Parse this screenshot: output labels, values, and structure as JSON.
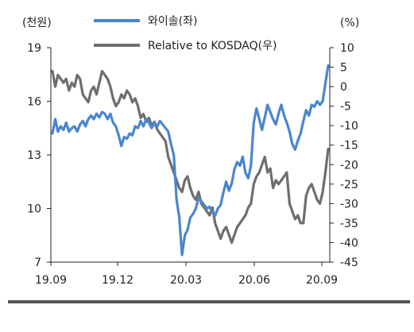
{
  "chart_data": {
    "type": "line",
    "y_left_unit": "(천원)",
    "y_right_unit": "(%)",
    "left_axis": {
      "min": 7,
      "max": 19,
      "ticks": [
        19,
        16,
        13,
        10,
        7
      ]
    },
    "right_axis": {
      "min": -45,
      "max": 10,
      "ticks": [
        10,
        5,
        0,
        -5,
        -10,
        -15,
        -20,
        -25,
        -30,
        -35,
        -40,
        -45
      ]
    },
    "x_ticks": [
      "19.09",
      "19.12",
      "20.03",
      "20.06",
      "20.09"
    ],
    "legend_position": "top",
    "grid": false,
    "colors": {
      "series1": "#4a86cf",
      "series2": "#6e6e6e",
      "axis": "#222222",
      "footer": "#555555"
    },
    "series": [
      {
        "name": "와이솔(좌)",
        "axis": "left",
        "x": [
          0,
          0.01,
          0.02,
          0.03,
          0.04,
          0.05,
          0.06,
          0.07,
          0.08,
          0.09,
          0.1,
          0.11,
          0.12,
          0.13,
          0.14,
          0.15,
          0.16,
          0.17,
          0.18,
          0.19,
          0.2,
          0.21,
          0.22,
          0.23,
          0.24,
          0.25,
          0.26,
          0.27,
          0.28,
          0.29,
          0.3,
          0.31,
          0.32,
          0.33,
          0.34,
          0.35,
          0.36,
          0.37,
          0.38,
          0.39,
          0.4,
          0.41,
          0.42,
          0.43,
          0.44,
          0.45,
          0.46,
          0.47,
          0.48,
          0.49,
          0.5,
          0.51,
          0.52,
          0.53,
          0.54,
          0.55,
          0.56,
          0.57,
          0.58,
          0.59,
          0.6,
          0.61,
          0.62,
          0.63,
          0.64,
          0.65,
          0.66,
          0.67,
          0.68,
          0.69,
          0.7,
          0.71,
          0.72,
          0.73,
          0.74,
          0.75,
          0.76,
          0.77,
          0.78,
          0.79,
          0.8,
          0.81,
          0.82,
          0.83,
          0.84,
          0.85,
          0.86,
          0.87,
          0.88,
          0.89,
          0.9,
          0.91,
          0.92,
          0.93,
          0.94,
          0.95,
          0.96,
          0.97,
          0.98,
          0.99,
          1.0
        ],
        "values": [
          14.2,
          15.0,
          14.3,
          14.6,
          14.4,
          14.8,
          14.3,
          14.5,
          14.6,
          14.3,
          14.7,
          14.9,
          14.6,
          15.0,
          15.2,
          15.0,
          15.3,
          15.1,
          15.4,
          15.3,
          15.0,
          15.3,
          14.8,
          14.6,
          14.1,
          13.5,
          14.0,
          13.9,
          14.2,
          14.1,
          14.6,
          14.5,
          14.9,
          14.6,
          15.0,
          14.8,
          14.5,
          14.8,
          14.6,
          14.9,
          14.7,
          14.5,
          14.3,
          13.6,
          13.0,
          10.5,
          9.5,
          7.4,
          8.5,
          8.8,
          9.5,
          9.7,
          10.0,
          10.6,
          10.4,
          10.2,
          10.0,
          10.1,
          9.8,
          9.6,
          10.0,
          10.2,
          10.9,
          11.5,
          11.0,
          11.4,
          12.2,
          12.6,
          12.4,
          12.9,
          12.0,
          11.7,
          12.4,
          14.8,
          15.6,
          15.0,
          14.4,
          15.1,
          15.8,
          15.4,
          15.0,
          14.7,
          15.3,
          15.8,
          15.2,
          14.8,
          14.3,
          13.6,
          13.3,
          13.8,
          14.2,
          14.9,
          15.5,
          15.2,
          15.8,
          15.7,
          16.0,
          15.8,
          16.0,
          17.0,
          18.0
        ]
      },
      {
        "name": "Relative to KOSDAQ(우)",
        "axis": "right",
        "x": [
          0,
          0.01,
          0.02,
          0.03,
          0.04,
          0.05,
          0.06,
          0.07,
          0.08,
          0.09,
          0.1,
          0.11,
          0.12,
          0.13,
          0.14,
          0.15,
          0.16,
          0.17,
          0.18,
          0.19,
          0.2,
          0.21,
          0.22,
          0.23,
          0.24,
          0.25,
          0.26,
          0.27,
          0.28,
          0.29,
          0.3,
          0.31,
          0.32,
          0.33,
          0.34,
          0.35,
          0.36,
          0.37,
          0.38,
          0.39,
          0.4,
          0.41,
          0.42,
          0.43,
          0.44,
          0.45,
          0.46,
          0.47,
          0.48,
          0.49,
          0.5,
          0.51,
          0.52,
          0.53,
          0.54,
          0.55,
          0.56,
          0.57,
          0.58,
          0.59,
          0.6,
          0.61,
          0.62,
          0.63,
          0.64,
          0.65,
          0.66,
          0.67,
          0.68,
          0.69,
          0.7,
          0.71,
          0.72,
          0.73,
          0.74,
          0.75,
          0.76,
          0.77,
          0.78,
          0.79,
          0.8,
          0.81,
          0.82,
          0.83,
          0.84,
          0.85,
          0.86,
          0.87,
          0.88,
          0.89,
          0.9,
          0.91,
          0.92,
          0.93,
          0.94,
          0.95,
          0.96,
          0.97,
          0.98,
          0.99,
          1.0
        ],
        "values": [
          4,
          0,
          3,
          2,
          1,
          2,
          -1,
          1,
          0,
          3,
          2,
          -2,
          -3,
          -4,
          -1,
          0,
          -2,
          1,
          4,
          3,
          2,
          0,
          -3,
          -5,
          -4,
          -2,
          -3,
          -1,
          -2,
          -4,
          -3,
          -5,
          -8,
          -7,
          -9,
          -8,
          -10,
          -9,
          -11,
          -12,
          -13,
          -14,
          -18,
          -20,
          -22,
          -24,
          -26,
          -27,
          -24,
          -23,
          -26,
          -28,
          -29,
          -27,
          -30,
          -31,
          -32,
          -33,
          -31,
          -35,
          -37,
          -39,
          -37,
          -36,
          -38,
          -40,
          -38,
          -36,
          -35,
          -34,
          -33,
          -31,
          -30,
          -25,
          -23,
          -22,
          -20,
          -18,
          -22,
          -21,
          -26,
          -24,
          -25,
          -24,
          -23,
          -22,
          -30,
          -32,
          -34,
          -33,
          -35,
          -35,
          -28,
          -26,
          -25,
          -27,
          -29,
          -30,
          -27,
          -22,
          -16
        ]
      }
    ]
  }
}
